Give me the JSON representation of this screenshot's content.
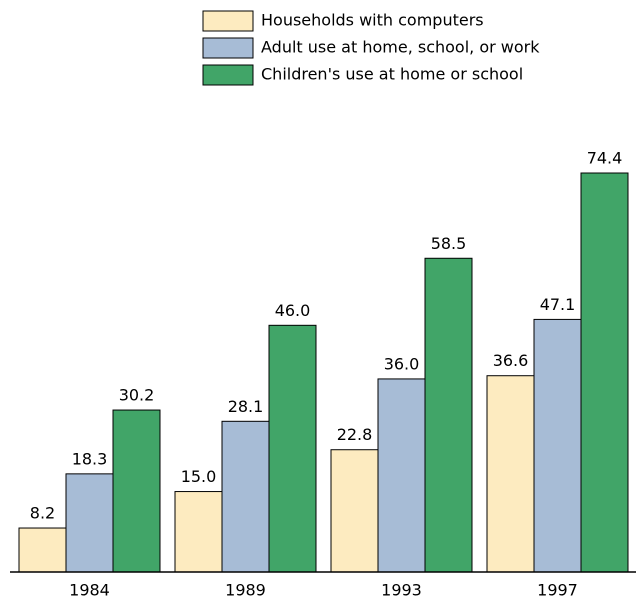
{
  "chart_data": {
    "type": "bar",
    "categories": [
      "1984",
      "1989",
      "1993",
      "1997"
    ],
    "series": [
      {
        "name": "Households with computers",
        "color": "#fdebc0",
        "values": [
          8.2,
          15,
          22.8,
          36.6
        ],
        "value_labels": [
          "8.2",
          "15.0",
          "22.8",
          "36.6"
        ]
      },
      {
        "name": "Adult use at home, school, or work",
        "color": "#a7bcd6",
        "values": [
          18.3,
          28.1,
          36,
          47.1
        ],
        "value_labels": [
          "18.3",
          "28.1",
          "36.0",
          "47.1"
        ]
      },
      {
        "name": "Children's use at home or school",
        "color": "#41a568",
        "values": [
          30.2,
          46,
          58.5,
          74.4
        ],
        "value_labels": [
          "30.2",
          "46.0",
          "58.5",
          "74.4"
        ]
      }
    ],
    "legend": "top-right"
  }
}
